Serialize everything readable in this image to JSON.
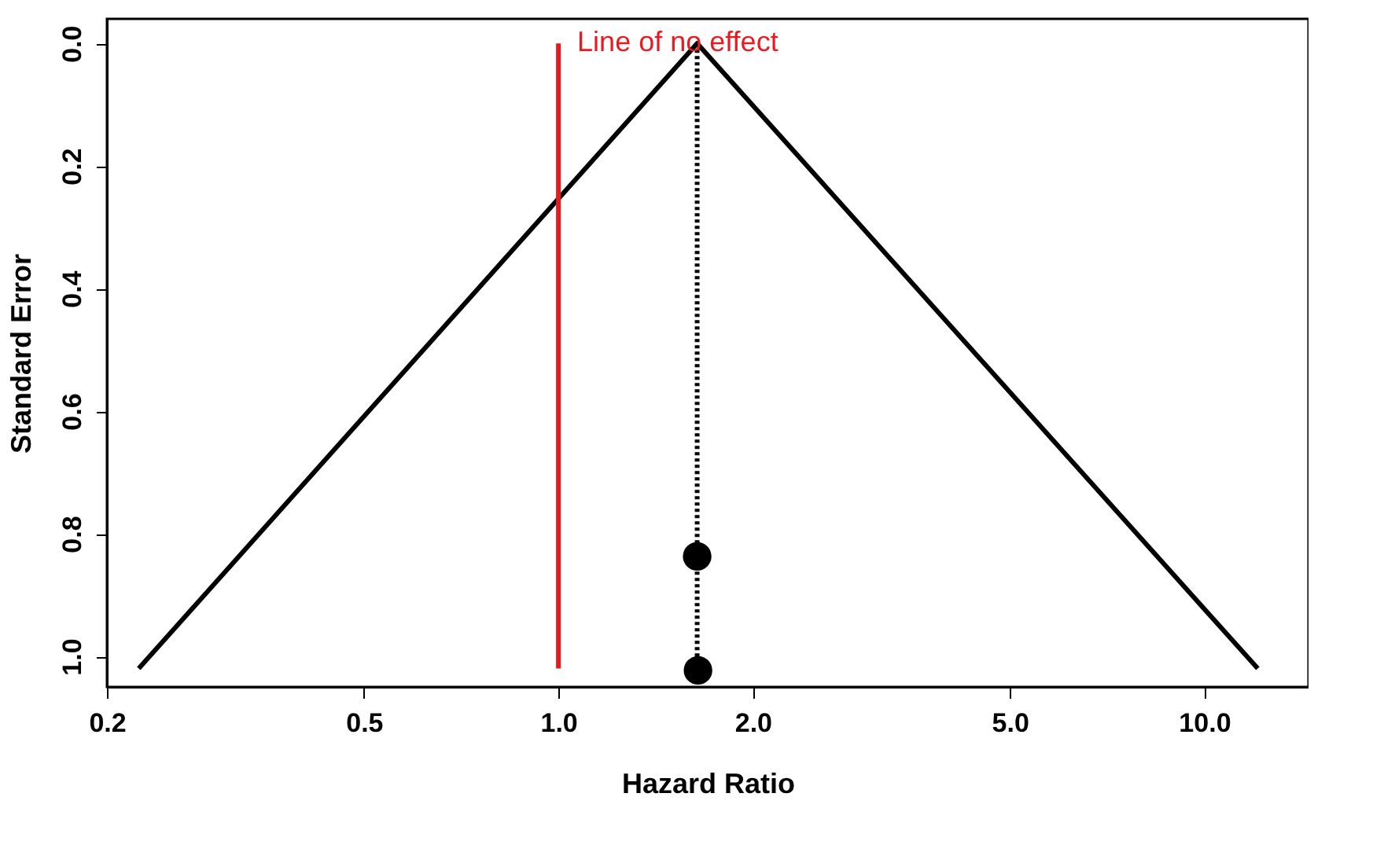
{
  "chart_data": {
    "type": "scatter",
    "xlabel": "Hazard Ratio",
    "ylabel": "Standard Error",
    "log": "x",
    "grid": false,
    "xlim": [
      0.2,
      14.5
    ],
    "ylim": [
      1.05,
      -0.04
    ],
    "xticks": [
      {
        "value": 0.2,
        "label": "0.2"
      },
      {
        "value": 0.5,
        "label": "0.5"
      },
      {
        "value": 1,
        "label": "1.0"
      },
      {
        "value": 2,
        "label": "2.0"
      },
      {
        "value": 5,
        "label": "5.0"
      },
      {
        "value": 10,
        "label": "10.0"
      }
    ],
    "yticks": [
      {
        "value": 0,
        "label": "0.0"
      },
      0.2,
      0.4,
      0.6,
      0.8,
      {
        "value": 1,
        "label": "1.0"
      }
    ],
    "series": [
      {
        "type": "line",
        "color": "#000000",
        "line_style": "solid",
        "x": [
          0.224,
          1.64,
          12.1
        ],
        "values": [
          1.02,
          0,
          1.02
        ]
      },
      {
        "type": "line",
        "color": "#000000",
        "line_style": "dotted",
        "x": [
          1.64,
          1.64
        ],
        "values": [
          0,
          1.02
        ]
      },
      {
        "type": "line",
        "color": "#e8191f",
        "line_style": "solid",
        "x": [
          1,
          1
        ],
        "values": [
          0,
          1.02
        ]
      },
      {
        "color": "#000000",
        "marker": "circle",
        "x": [
          1.64,
          1.645
        ],
        "values": [
          0.837,
          1.023
        ]
      }
    ],
    "annotations": [
      {
        "text": "Line of no effect",
        "x": 1,
        "y": 0
      }
    ]
  }
}
